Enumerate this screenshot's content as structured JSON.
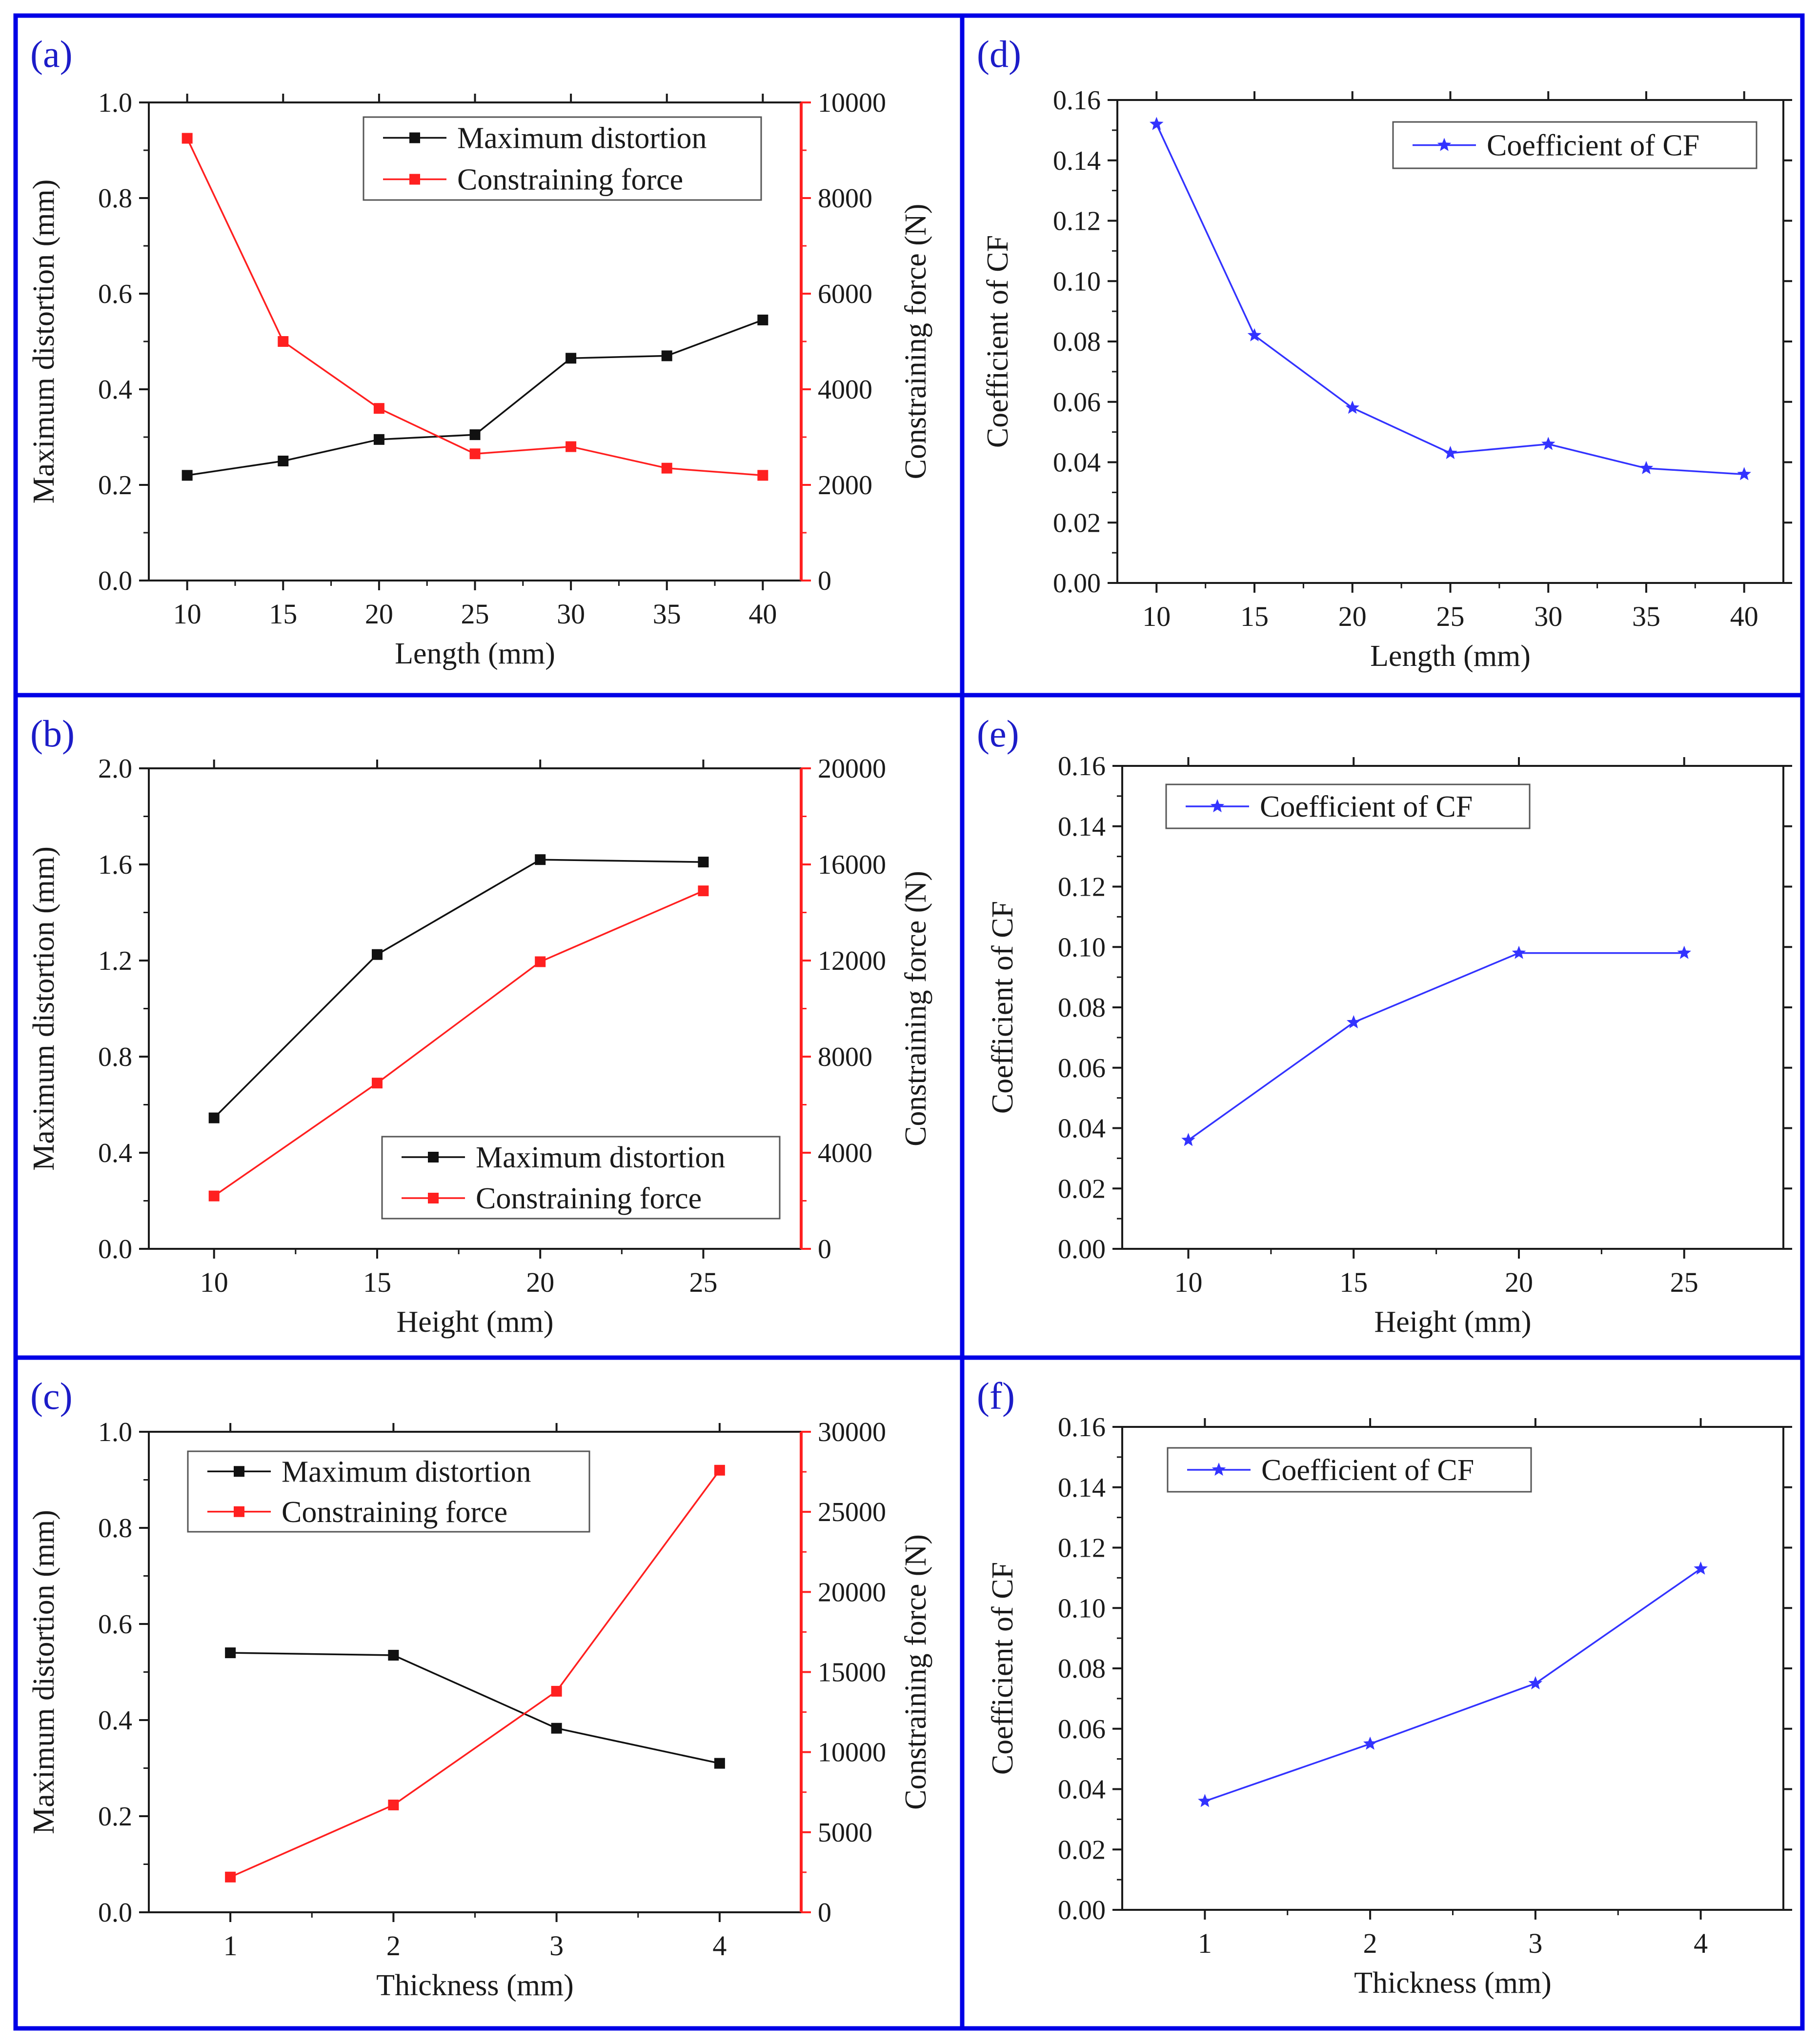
{
  "colors": {
    "frame": "#0000e6",
    "black_series": "#111111",
    "red_series": "#ff2020",
    "blue_series": "#3333ff",
    "panel_label": "#1c1cc8"
  },
  "chart_data": [
    {
      "id": "a",
      "panel_label": "(a)",
      "type": "line",
      "xlabel": "Length (mm)",
      "ylabel": "Maximum distortion (mm)",
      "ylabel_right": "Constraining force (N)",
      "xlim": [
        8,
        42
      ],
      "ylim": [
        0,
        1.0
      ],
      "ylim_right": [
        0,
        10000
      ],
      "xticks": [
        "10",
        "15",
        "20",
        "25",
        "30",
        "35",
        "40"
      ],
      "yticks": [
        "0.0",
        "0.2",
        "0.4",
        "0.6",
        "0.8",
        "1.0"
      ],
      "yticks_right": [
        "0",
        "2000",
        "4000",
        "6000",
        "8000",
        "10000"
      ],
      "legend_position": "top-right",
      "series": [
        {
          "name": "Maximum distortion",
          "axis": "left",
          "marker": "square",
          "color": "#111111",
          "x": [
            10,
            15,
            20,
            25,
            30,
            35,
            40
          ],
          "values": [
            0.22,
            0.25,
            0.295,
            0.305,
            0.465,
            0.47,
            0.545
          ]
        },
        {
          "name": "Constraining force",
          "axis": "right",
          "marker": "square",
          "color": "#ff2020",
          "x": [
            10,
            15,
            20,
            25,
            30,
            35,
            40
          ],
          "values": [
            9250,
            5000,
            3600,
            2650,
            2800,
            2350,
            2200
          ]
        }
      ]
    },
    {
      "id": "d",
      "panel_label": "(d)",
      "type": "line",
      "xlabel": "Length (mm)",
      "ylabel": "Coefficient of CF",
      "xlim": [
        8,
        42
      ],
      "ylim": [
        0,
        0.16
      ],
      "xticks": [
        "10",
        "15",
        "20",
        "25",
        "30",
        "35",
        "40"
      ],
      "yticks": [
        "0.00",
        "0.02",
        "0.04",
        "0.06",
        "0.08",
        "0.10",
        "0.12",
        "0.14",
        "0.16"
      ],
      "legend_position": "top-right",
      "series": [
        {
          "name": "Coefficient of CF",
          "axis": "left",
          "marker": "star",
          "color": "#3333ff",
          "x": [
            10,
            15,
            20,
            25,
            30,
            35,
            40
          ],
          "values": [
            0.152,
            0.082,
            0.058,
            0.043,
            0.046,
            0.038,
            0.036
          ]
        }
      ]
    },
    {
      "id": "b",
      "panel_label": "(b)",
      "type": "line",
      "xlabel": "Height (mm)",
      "ylabel": "Maximum distortion (mm)",
      "ylabel_right": "Constraining force (N)",
      "xlim": [
        8,
        28
      ],
      "ylim": [
        0,
        2.0
      ],
      "ylim_right": [
        0,
        20000
      ],
      "xticks": [
        "10",
        "15",
        "20",
        "25"
      ],
      "yticks": [
        "0.0",
        "0.4",
        "0.8",
        "1.2",
        "1.6",
        "2.0"
      ],
      "yticks_right": [
        "0",
        "4000",
        "8000",
        "12000",
        "16000",
        "20000"
      ],
      "legend_position": "bottom-right",
      "series": [
        {
          "name": "Maximum distortion",
          "axis": "left",
          "marker": "square",
          "color": "#111111",
          "x": [
            10,
            15,
            20,
            25
          ],
          "values": [
            0.545,
            1.225,
            1.62,
            1.61
          ]
        },
        {
          "name": "Constraining force",
          "axis": "right",
          "marker": "square",
          "color": "#ff2020",
          "x": [
            10,
            15,
            20,
            25
          ],
          "values": [
            2200,
            6900,
            11950,
            14900
          ]
        }
      ]
    },
    {
      "id": "e",
      "panel_label": "(e)",
      "type": "line",
      "xlabel": "Height (mm)",
      "ylabel": "Coefficient of CF",
      "xlim": [
        8,
        28
      ],
      "ylim": [
        0,
        0.16
      ],
      "xticks": [
        "10",
        "15",
        "20",
        "25"
      ],
      "yticks": [
        "0.00",
        "0.02",
        "0.04",
        "0.06",
        "0.08",
        "0.10",
        "0.12",
        "0.14",
        "0.16"
      ],
      "legend_position": "top-left",
      "series": [
        {
          "name": "Coefficient of CF",
          "axis": "left",
          "marker": "star",
          "color": "#3333ff",
          "x": [
            10,
            15,
            20,
            25
          ],
          "values": [
            0.036,
            0.075,
            0.098,
            0.098
          ]
        }
      ]
    },
    {
      "id": "c",
      "panel_label": "(c)",
      "type": "line",
      "xlabel": "Thickness (mm)",
      "ylabel": "Maximum distortion (mm)",
      "ylabel_right": "Constraining force (N)",
      "xlim": [
        0.5,
        4.5
      ],
      "ylim": [
        0,
        1.0
      ],
      "ylim_right": [
        0,
        30000
      ],
      "xticks": [
        "1",
        "2",
        "3",
        "4"
      ],
      "yticks": [
        "0.0",
        "0.2",
        "0.4",
        "0.6",
        "0.8",
        "1.0"
      ],
      "yticks_right": [
        "0",
        "5000",
        "10000",
        "15000",
        "20000",
        "25000",
        "30000"
      ],
      "legend_position": "top-left",
      "series": [
        {
          "name": "Maximum distortion",
          "axis": "left",
          "marker": "square",
          "color": "#111111",
          "x": [
            1,
            2,
            3,
            4
          ],
          "values": [
            0.54,
            0.535,
            0.383,
            0.31
          ]
        },
        {
          "name": "Constraining force",
          "axis": "right",
          "marker": "square",
          "color": "#ff2020",
          "x": [
            1,
            2,
            3,
            4
          ],
          "values": [
            2200,
            6700,
            13800,
            27600
          ]
        }
      ]
    },
    {
      "id": "f",
      "panel_label": "(f)",
      "type": "line",
      "xlabel": "Thickness (mm)",
      "ylabel": "Coefficient of CF",
      "xlim": [
        0.5,
        4.5
      ],
      "ylim": [
        0,
        0.16
      ],
      "xticks": [
        "1",
        "2",
        "3",
        "4"
      ],
      "yticks": [
        "0.00",
        "0.02",
        "0.04",
        "0.06",
        "0.08",
        "0.10",
        "0.12",
        "0.14",
        "0.16"
      ],
      "legend_position": "top-left",
      "series": [
        {
          "name": "Coefficient of CF",
          "axis": "left",
          "marker": "star",
          "color": "#3333ff",
          "x": [
            1,
            2,
            3,
            4
          ],
          "values": [
            0.036,
            0.055,
            0.075,
            0.113
          ]
        }
      ]
    }
  ]
}
